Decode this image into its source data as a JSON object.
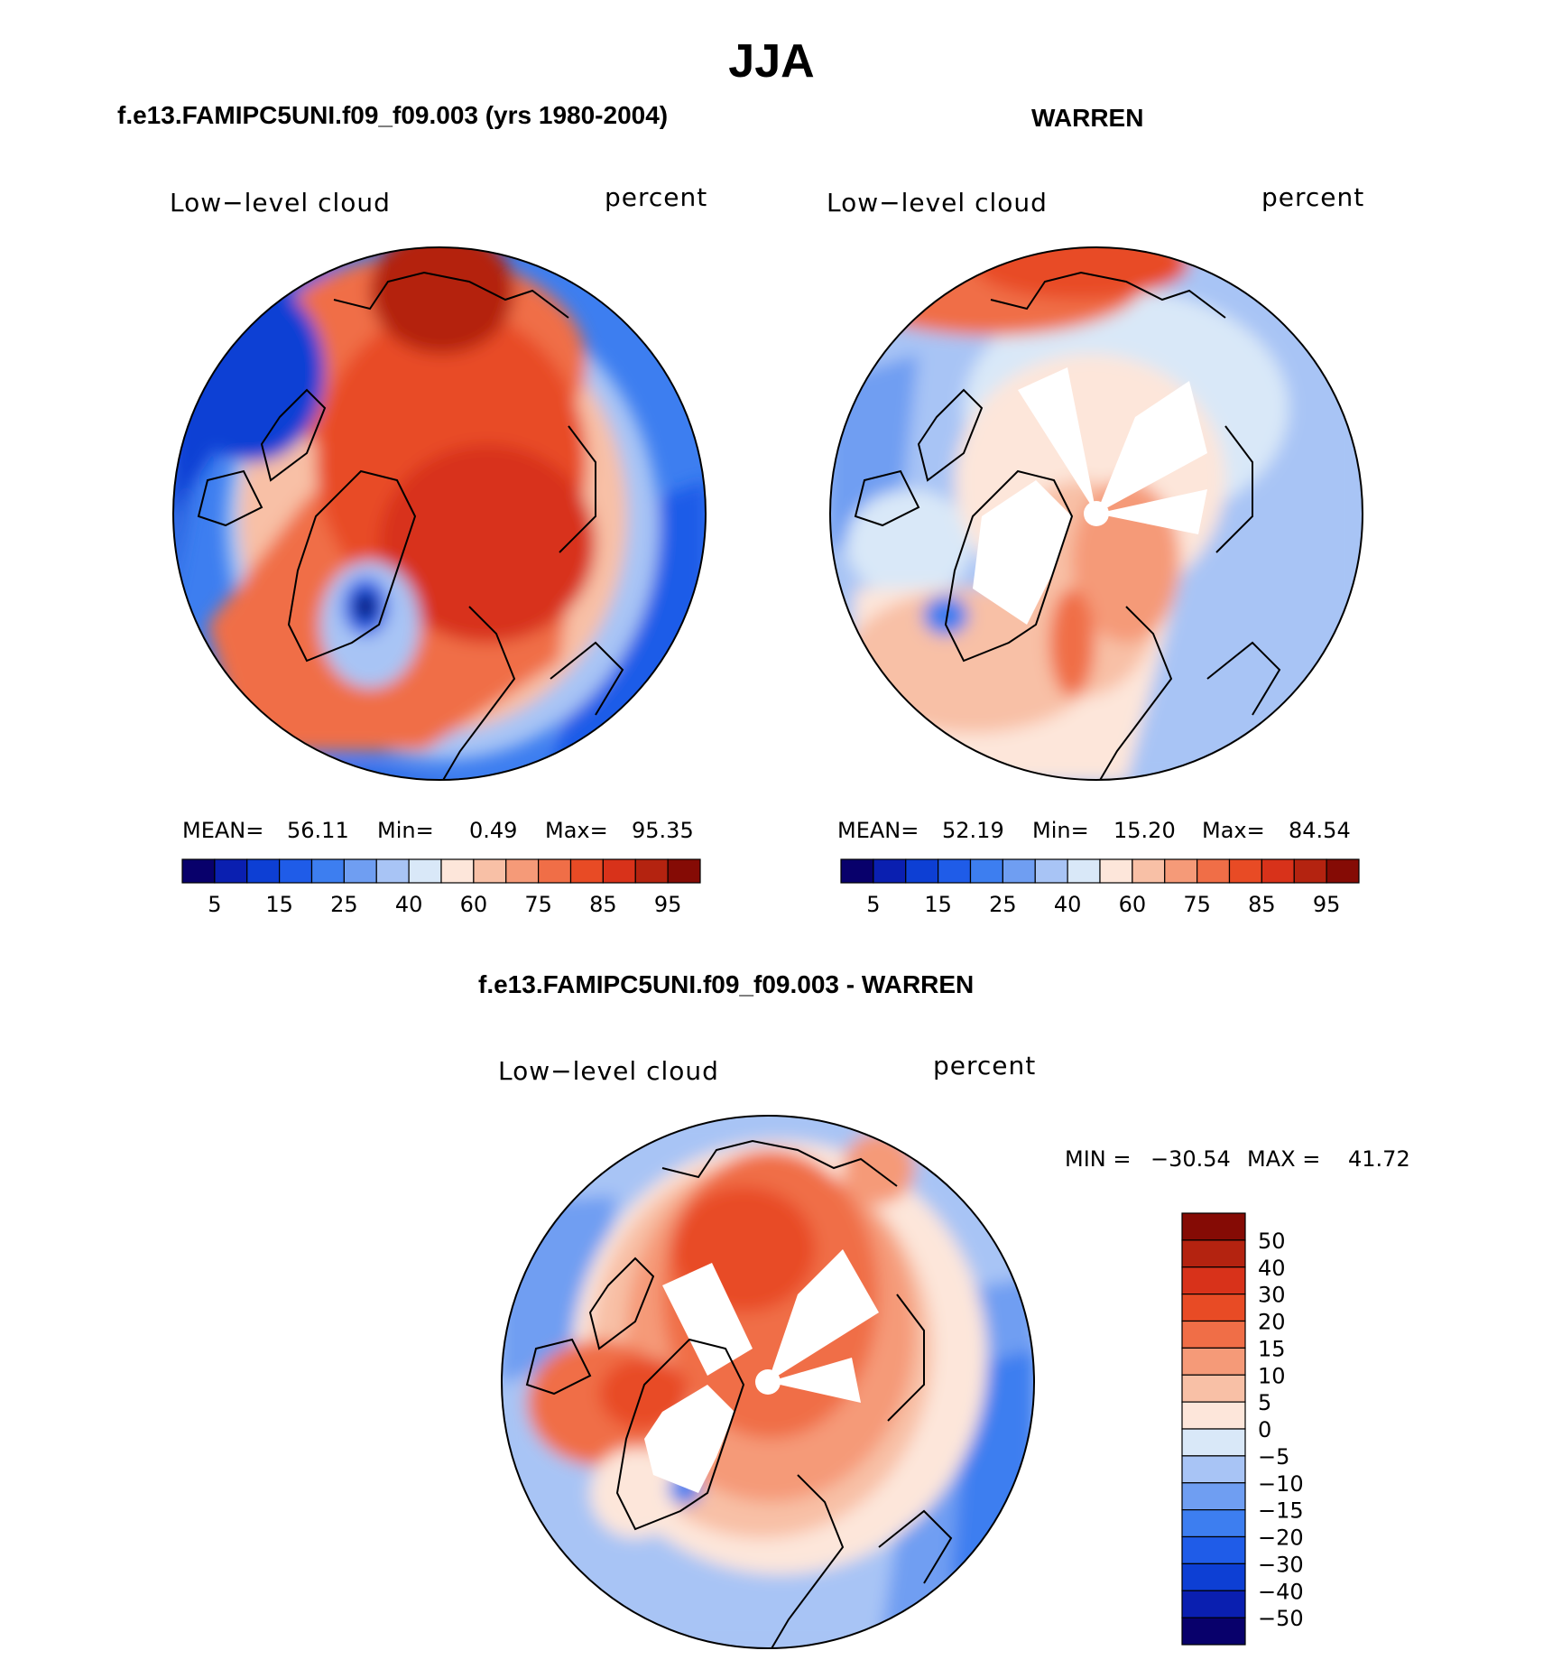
{
  "title": "JJA",
  "chart_data": [
    {
      "type": "heatmap",
      "projection": "polar-stereographic-north",
      "title": "f.e13.FAMIPC5UNI.f09_f09.003 (yrs 1980-2004)",
      "left_label": "Low−level cloud",
      "right_label": "percent",
      "stats": {
        "mean_label": "MEAN=",
        "mean": "56.11",
        "min_label": "Min=",
        "min": "0.49",
        "max_label": "Max=",
        "max": "95.35"
      },
      "colorbar": {
        "orientation": "horizontal",
        "levels": [
          5,
          10,
          15,
          20,
          25,
          30,
          40,
          50,
          60,
          70,
          75,
          80,
          85,
          90,
          95
        ],
        "tick_labels": [
          "5",
          "15",
          "25",
          "40",
          "60",
          "75",
          "85",
          "95"
        ],
        "colors": [
          "#08006b",
          "#0a1fb0",
          "#0d3fd4",
          "#1f5ce8",
          "#3d7ef0",
          "#6f9ef2",
          "#a8c4f5",
          "#d9e8f8",
          "#fde6da",
          "#f8c0a6",
          "#f59a78",
          "#f06e47",
          "#e84b25",
          "#d8321a",
          "#b42310",
          "#850b05"
        ]
      }
    },
    {
      "type": "heatmap",
      "projection": "polar-stereographic-north",
      "title": "WARREN",
      "left_label": "Low−level cloud",
      "right_label": "percent",
      "stats": {
        "mean_label": "MEAN=",
        "mean": "52.19",
        "min_label": "Min=",
        "min": "15.20",
        "max_label": "Max=",
        "max": "84.54"
      },
      "colorbar": {
        "orientation": "horizontal",
        "levels": [
          5,
          10,
          15,
          20,
          25,
          30,
          40,
          50,
          60,
          70,
          75,
          80,
          85,
          90,
          95
        ],
        "tick_labels": [
          "5",
          "15",
          "25",
          "40",
          "60",
          "75",
          "85",
          "95"
        ],
        "colors": [
          "#08006b",
          "#0a1fb0",
          "#0d3fd4",
          "#1f5ce8",
          "#3d7ef0",
          "#6f9ef2",
          "#a8c4f5",
          "#d9e8f8",
          "#fde6da",
          "#f8c0a6",
          "#f59a78",
          "#f06e47",
          "#e84b25",
          "#d8321a",
          "#b42310",
          "#850b05"
        ]
      }
    },
    {
      "type": "heatmap",
      "projection": "polar-stereographic-north",
      "title": "f.e13.FAMIPC5UNI.f09_f09.003 - WARREN",
      "left_label": "Low−level cloud",
      "right_label": "percent",
      "stats": {
        "min_label": "MIN = ",
        "min": "−30.54",
        "max_label": "MAX = ",
        "max": "41.72"
      },
      "colorbar": {
        "orientation": "vertical",
        "levels": [
          50,
          40,
          30,
          20,
          15,
          10,
          5,
          0,
          -5,
          -10,
          -15,
          -20,
          -30,
          -40,
          -50
        ],
        "tick_labels": [
          "50",
          "40",
          "30",
          "20",
          "15",
          "10",
          "5",
          "0",
          "−5",
          "−10",
          "−15",
          "−20",
          "−30",
          "−40",
          "−50"
        ],
        "colors": [
          "#850b05",
          "#b42310",
          "#d8321a",
          "#e84b25",
          "#f06e47",
          "#f59a78",
          "#f8c0a6",
          "#fde6da",
          "#d9e8f8",
          "#a8c4f5",
          "#6f9ef2",
          "#3d7ef0",
          "#1f5ce8",
          "#0d3fd4",
          "#0a1fb0",
          "#08006b"
        ]
      }
    }
  ]
}
